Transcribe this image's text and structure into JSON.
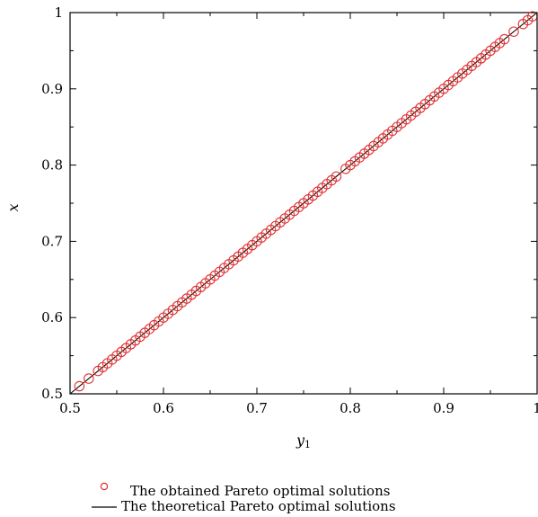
{
  "chart_data": {
    "type": "scatter",
    "xlabel": "y",
    "xlabel_sub": "1",
    "ylabel": "x",
    "xlim": [
      0.5,
      1.0
    ],
    "ylim": [
      0.5,
      1.0
    ],
    "xticks": [
      "0.5",
      "0.6",
      "0.7",
      "0.8",
      "0.9",
      "1"
    ],
    "yticks": [
      "0.5",
      "0.6",
      "0.7",
      "0.8",
      "0.9",
      "1"
    ],
    "grid": false,
    "legend_placement": "bottom",
    "series": [
      {
        "name": "The obtained Pareto optimal solutions",
        "kind": "markers",
        "marker": "open-circle",
        "color": "#e03030",
        "x": [
          0.51,
          0.52,
          0.53,
          0.535,
          0.54,
          0.545,
          0.55,
          0.555,
          0.56,
          0.565,
          0.57,
          0.575,
          0.58,
          0.585,
          0.59,
          0.595,
          0.6,
          0.605,
          0.61,
          0.615,
          0.62,
          0.625,
          0.63,
          0.635,
          0.64,
          0.645,
          0.65,
          0.655,
          0.66,
          0.665,
          0.67,
          0.675,
          0.68,
          0.685,
          0.69,
          0.695,
          0.7,
          0.705,
          0.71,
          0.715,
          0.72,
          0.725,
          0.73,
          0.735,
          0.74,
          0.745,
          0.75,
          0.755,
          0.76,
          0.765,
          0.77,
          0.775,
          0.78,
          0.785,
          0.795,
          0.8,
          0.805,
          0.81,
          0.815,
          0.82,
          0.825,
          0.83,
          0.835,
          0.84,
          0.845,
          0.85,
          0.855,
          0.86,
          0.865,
          0.87,
          0.875,
          0.88,
          0.885,
          0.89,
          0.895,
          0.9,
          0.905,
          0.91,
          0.915,
          0.92,
          0.925,
          0.93,
          0.935,
          0.94,
          0.945,
          0.95,
          0.955,
          0.96,
          0.965,
          0.975,
          0.985,
          0.99,
          0.995
        ],
        "y": [
          0.51,
          0.52,
          0.53,
          0.535,
          0.54,
          0.545,
          0.55,
          0.555,
          0.56,
          0.565,
          0.57,
          0.575,
          0.58,
          0.585,
          0.59,
          0.595,
          0.6,
          0.605,
          0.61,
          0.615,
          0.62,
          0.625,
          0.63,
          0.635,
          0.64,
          0.645,
          0.65,
          0.655,
          0.66,
          0.665,
          0.67,
          0.675,
          0.68,
          0.685,
          0.69,
          0.695,
          0.7,
          0.705,
          0.71,
          0.715,
          0.72,
          0.725,
          0.73,
          0.735,
          0.74,
          0.745,
          0.75,
          0.755,
          0.76,
          0.765,
          0.77,
          0.775,
          0.78,
          0.785,
          0.795,
          0.8,
          0.805,
          0.81,
          0.815,
          0.82,
          0.825,
          0.83,
          0.835,
          0.84,
          0.845,
          0.85,
          0.855,
          0.86,
          0.865,
          0.87,
          0.875,
          0.88,
          0.885,
          0.89,
          0.895,
          0.9,
          0.905,
          0.91,
          0.915,
          0.92,
          0.925,
          0.93,
          0.935,
          0.94,
          0.945,
          0.95,
          0.955,
          0.96,
          0.965,
          0.975,
          0.985,
          0.99,
          0.995
        ]
      },
      {
        "name": "The theoretical Pareto optimal solutions",
        "kind": "line",
        "color": "#000000",
        "x": [
          0.5,
          1.0
        ],
        "y": [
          0.5,
          1.0
        ]
      }
    ]
  }
}
